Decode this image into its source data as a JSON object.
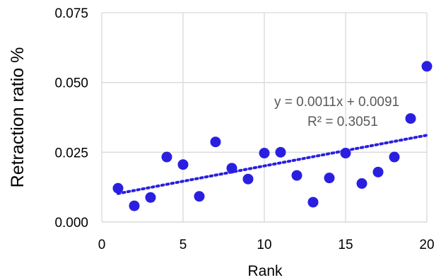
{
  "chart_data": {
    "type": "scatter",
    "xlabel": "Rank",
    "ylabel": "Retraction ratio %",
    "xlim": [
      0,
      20
    ],
    "ylim": [
      0,
      0.075
    ],
    "x_ticks": [
      "0",
      "5",
      "10",
      "15",
      "20"
    ],
    "y_ticks": [
      "0.000",
      "0.025",
      "0.050",
      "0.075"
    ],
    "grid": true,
    "marker_color": "#2a1fe0",
    "trendline_color": "#2a1fe0",
    "series": [
      {
        "points": [
          {
            "x": 1,
            "y": 0.0121
          },
          {
            "x": 2,
            "y": 0.0058
          },
          {
            "x": 3,
            "y": 0.0088
          },
          {
            "x": 4,
            "y": 0.0233
          },
          {
            "x": 5,
            "y": 0.0206
          },
          {
            "x": 6,
            "y": 0.0092
          },
          {
            "x": 7,
            "y": 0.0287
          },
          {
            "x": 8,
            "y": 0.0193
          },
          {
            "x": 9,
            "y": 0.0154
          },
          {
            "x": 10,
            "y": 0.0247
          },
          {
            "x": 11,
            "y": 0.025
          },
          {
            "x": 12,
            "y": 0.0167
          },
          {
            "x": 13,
            "y": 0.0071
          },
          {
            "x": 14,
            "y": 0.0158
          },
          {
            "x": 15,
            "y": 0.0247
          },
          {
            "x": 16,
            "y": 0.0138
          },
          {
            "x": 17,
            "y": 0.0179
          },
          {
            "x": 18,
            "y": 0.0233
          },
          {
            "x": 19,
            "y": 0.0371
          },
          {
            "x": 20,
            "y": 0.0558
          }
        ]
      }
    ],
    "trendline": {
      "type": "linear",
      "slope": 0.0011,
      "intercept": 0.0091,
      "x_start": 1,
      "x_end": 20,
      "equation": "y = 0.0011x + 0.0091",
      "r_squared": "R² = 0.3051"
    }
  }
}
